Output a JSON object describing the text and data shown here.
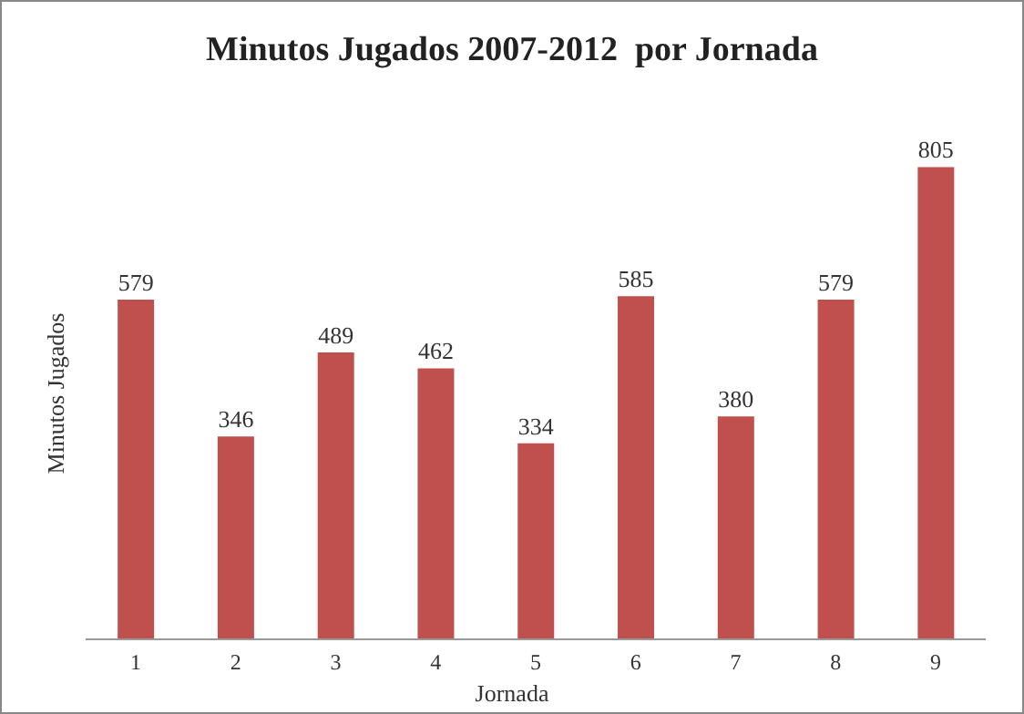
{
  "chart_data": {
    "type": "bar",
    "title": "Minutos Jugados 2007-2012  por Jornada",
    "xlabel": "Jornada",
    "ylabel": "Minutos Jugados",
    "categories": [
      "1",
      "2",
      "3",
      "4",
      "5",
      "6",
      "7",
      "8",
      "9"
    ],
    "values": [
      579,
      346,
      489,
      462,
      334,
      585,
      380,
      579,
      805
    ],
    "color": "#c0504d",
    "data_labels": true
  }
}
